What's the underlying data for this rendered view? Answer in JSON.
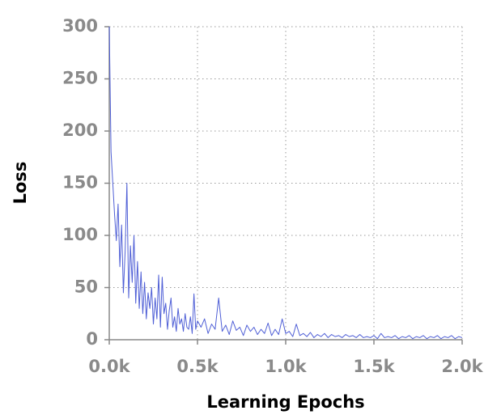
{
  "chart_data": {
    "type": "line",
    "x_label": "Learning Epochs",
    "y_label": "Loss",
    "color": "#4f5fd6",
    "grid": true,
    "xlim": [
      0,
      2000
    ],
    "ylim": [
      0,
      300
    ],
    "xticks": [
      {
        "value": 0,
        "label": "0.0k"
      },
      {
        "value": 500,
        "label": "0.5k"
      },
      {
        "value": 1000,
        "label": "1.0k"
      },
      {
        "value": 1500,
        "label": "1.5k"
      },
      {
        "value": 2000,
        "label": "2.0k"
      }
    ],
    "yticks": [
      0,
      50,
      100,
      150,
      200,
      250,
      300
    ],
    "x": [
      0,
      10,
      20,
      30,
      40,
      50,
      60,
      70,
      80,
      90,
      100,
      110,
      120,
      130,
      140,
      150,
      160,
      170,
      180,
      190,
      200,
      210,
      220,
      230,
      240,
      250,
      260,
      270,
      280,
      290,
      300,
      310,
      320,
      330,
      340,
      350,
      360,
      370,
      380,
      390,
      400,
      410,
      420,
      430,
      440,
      450,
      460,
      470,
      480,
      490,
      500,
      520,
      540,
      560,
      580,
      600,
      620,
      640,
      660,
      680,
      700,
      720,
      740,
      760,
      780,
      800,
      820,
      840,
      860,
      880,
      900,
      920,
      940,
      960,
      980,
      1000,
      1020,
      1040,
      1060,
      1080,
      1100,
      1120,
      1140,
      1160,
      1180,
      1200,
      1220,
      1240,
      1260,
      1280,
      1300,
      1320,
      1340,
      1360,
      1380,
      1400,
      1420,
      1440,
      1460,
      1480,
      1500,
      1520,
      1540,
      1560,
      1580,
      1600,
      1620,
      1640,
      1660,
      1680,
      1700,
      1720,
      1740,
      1760,
      1780,
      1800,
      1820,
      1840,
      1860,
      1880,
      1900,
      1920,
      1940,
      1960,
      1980,
      2000
    ],
    "values": [
      300,
      180,
      150,
      120,
      95,
      130,
      70,
      110,
      45,
      85,
      150,
      40,
      90,
      55,
      100,
      35,
      75,
      30,
      65,
      25,
      55,
      20,
      45,
      30,
      50,
      15,
      40,
      20,
      62,
      12,
      60,
      25,
      35,
      10,
      28,
      40,
      12,
      22,
      8,
      30,
      15,
      20,
      8,
      25,
      12,
      10,
      22,
      6,
      44,
      10,
      18,
      12,
      20,
      6,
      15,
      10,
      40,
      8,
      14,
      5,
      18,
      9,
      12,
      4,
      14,
      8,
      12,
      5,
      10,
      6,
      16,
      4,
      10,
      5,
      20,
      6,
      8,
      3,
      15,
      4,
      6,
      3,
      7,
      2,
      5,
      3,
      6,
      2,
      5,
      3,
      4,
      2,
      5,
      3,
      4,
      2,
      5,
      2,
      3,
      2,
      4,
      1,
      6,
      2,
      3,
      2,
      4,
      1,
      3,
      2,
      4,
      1,
      3,
      2,
      4,
      1,
      3,
      2,
      4,
      1,
      3,
      2,
      4,
      1,
      3,
      2
    ]
  }
}
